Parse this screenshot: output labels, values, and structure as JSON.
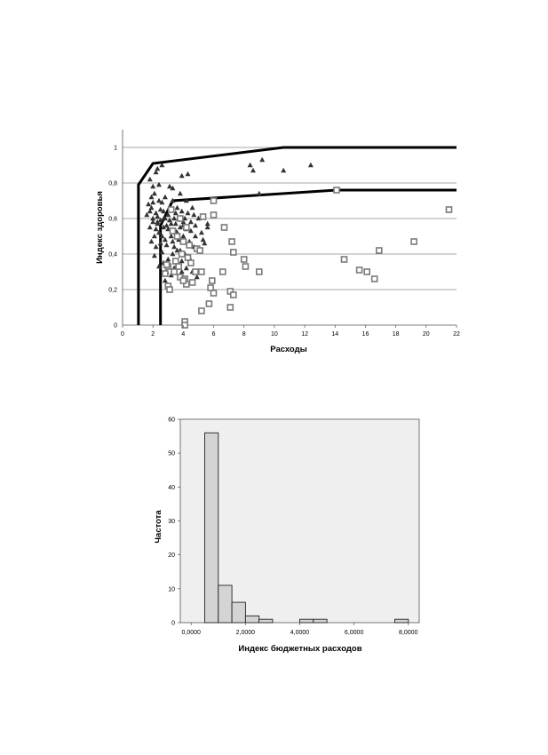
{
  "chart_data": [
    {
      "type": "scatter",
      "xlabel": "Расходы",
      "ylabel": "Индекс здоровья",
      "xlim": [
        0,
        22
      ],
      "ylim": [
        0,
        1.1
      ],
      "x_ticks": [
        "0",
        "2",
        "4",
        "6",
        "8",
        "10",
        "12",
        "14",
        "16",
        "18",
        "20",
        "22"
      ],
      "y_ticks": [
        "0",
        "0,2",
        "0,4",
        "0,6",
        "0,8",
        "1"
      ],
      "grid": "horizontal",
      "series": [
        {
          "marker": "triangle",
          "color": "#333333",
          "points": [
            [
              1.8,
              0.82
            ],
            [
              2.2,
              0.86
            ],
            [
              2.0,
              0.78
            ],
            [
              1.9,
              0.72
            ],
            [
              2.3,
              0.88
            ],
            [
              1.7,
              0.68
            ],
            [
              1.6,
              0.62
            ],
            [
              1.9,
              0.66
            ],
            [
              2.1,
              0.74
            ],
            [
              2.4,
              0.79
            ],
            [
              2.0,
              0.6
            ],
            [
              2.2,
              0.63
            ],
            [
              2.5,
              0.65
            ],
            [
              2.3,
              0.58
            ],
            [
              1.8,
              0.55
            ],
            [
              2.6,
              0.69
            ],
            [
              2.8,
              0.72
            ],
            [
              3.1,
              0.78
            ],
            [
              3.3,
              0.7
            ],
            [
              3.6,
              0.66
            ],
            [
              3.9,
              0.64
            ],
            [
              4.1,
              0.6
            ],
            [
              4.3,
              0.63
            ],
            [
              4.5,
              0.58
            ],
            [
              4.8,
              0.56
            ],
            [
              5.2,
              0.52
            ],
            [
              5.6,
              0.55
            ],
            [
              5.0,
              0.6
            ],
            [
              4.6,
              0.66
            ],
            [
              4.2,
              0.7
            ],
            [
              3.8,
              0.74
            ],
            [
              3.4,
              0.6
            ],
            [
              3.0,
              0.62
            ],
            [
              2.7,
              0.55
            ],
            [
              2.4,
              0.52
            ],
            [
              2.1,
              0.5
            ],
            [
              1.9,
              0.47
            ],
            [
              2.2,
              0.44
            ],
            [
              2.5,
              0.46
            ],
            [
              2.8,
              0.48
            ],
            [
              3.2,
              0.5
            ],
            [
              3.5,
              0.53
            ],
            [
              3.7,
              0.48
            ],
            [
              4.0,
              0.5
            ],
            [
              4.4,
              0.47
            ],
            [
              4.7,
              0.44
            ],
            [
              5.1,
              0.42
            ],
            [
              5.4,
              0.46
            ],
            [
              3.3,
              0.4
            ],
            [
              3.0,
              0.37
            ],
            [
              2.7,
              0.35
            ],
            [
              2.4,
              0.33
            ],
            [
              2.9,
              0.3
            ],
            [
              3.2,
              0.28
            ],
            [
              3.6,
              0.34
            ],
            [
              3.9,
              0.36
            ],
            [
              4.2,
              0.32
            ],
            [
              4.6,
              0.3
            ],
            [
              4.9,
              0.27
            ],
            [
              2.1,
              0.39
            ],
            [
              2.6,
              0.41
            ],
            [
              3.4,
              0.44
            ],
            [
              3.8,
              0.42
            ],
            [
              4.1,
              0.4
            ],
            [
              4.4,
              0.38
            ],
            [
              2.3,
              0.57
            ],
            [
              2.9,
              0.56
            ],
            [
              3.5,
              0.57
            ],
            [
              4.0,
              0.56
            ],
            [
              4.7,
              0.62
            ],
            [
              3.1,
              0.66
            ],
            [
              3.7,
              0.6
            ],
            [
              4.3,
              0.85
            ],
            [
              3.9,
              0.84
            ],
            [
              2.6,
              0.9
            ],
            [
              3.3,
              0.77
            ],
            [
              2.0,
              0.69
            ],
            [
              1.8,
              0.64
            ],
            [
              2.4,
              0.7
            ],
            [
              3.6,
              0.52
            ],
            [
              2.8,
              0.6
            ],
            [
              2.5,
              0.59
            ],
            [
              3.0,
              0.54
            ],
            [
              3.2,
              0.57
            ],
            [
              3.8,
              0.55
            ],
            [
              4.0,
              0.58
            ],
            [
              4.5,
              0.53
            ],
            [
              2.2,
              0.54
            ],
            [
              2.6,
              0.5
            ],
            [
              2.9,
              0.45
            ],
            [
              3.3,
              0.47
            ],
            [
              3.6,
              0.42
            ],
            [
              4.8,
              0.5
            ],
            [
              5.3,
              0.48
            ],
            [
              3.4,
              0.32
            ],
            [
              2.8,
              0.25
            ],
            [
              3.9,
              0.3
            ],
            [
              8.4,
              0.9
            ],
            [
              9.2,
              0.93
            ],
            [
              8.6,
              0.87
            ],
            [
              10.6,
              0.87
            ],
            [
              12.4,
              0.9
            ],
            [
              9.0,
              0.74
            ],
            [
              5.6,
              0.57
            ],
            [
              2.0,
              0.58
            ],
            [
              2.3,
              0.61
            ],
            [
              2.7,
              0.64
            ],
            [
              3.1,
              0.59
            ],
            [
              3.5,
              0.63
            ],
            [
              4.2,
              0.54
            ]
          ]
        },
        {
          "marker": "square",
          "color": "#7a7a7a",
          "points": [
            [
              3.2,
              0.65
            ],
            [
              3.8,
              0.6
            ],
            [
              4.2,
              0.55
            ],
            [
              3.3,
              0.53
            ],
            [
              3.6,
              0.5
            ],
            [
              4.0,
              0.47
            ],
            [
              4.4,
              0.45
            ],
            [
              4.9,
              0.43
            ],
            [
              5.1,
              0.42
            ],
            [
              3.9,
              0.4
            ],
            [
              4.3,
              0.38
            ],
            [
              3.5,
              0.36
            ],
            [
              3.0,
              0.33
            ],
            [
              3.4,
              0.3
            ],
            [
              4.8,
              0.3
            ],
            [
              5.2,
              0.3
            ],
            [
              3.8,
              0.27
            ],
            [
              4.1,
              0.26
            ],
            [
              4.6,
              0.24
            ],
            [
              4.2,
              0.23
            ],
            [
              3.0,
              0.22
            ],
            [
              3.1,
              0.2
            ],
            [
              5.9,
              0.25
            ],
            [
              5.8,
              0.21
            ],
            [
              6.0,
              0.18
            ],
            [
              5.3,
              0.61
            ],
            [
              6.0,
              0.62
            ],
            [
              6.0,
              0.7
            ],
            [
              6.7,
              0.55
            ],
            [
              7.2,
              0.47
            ],
            [
              7.3,
              0.41
            ],
            [
              8.0,
              0.37
            ],
            [
              8.1,
              0.33
            ],
            [
              6.6,
              0.3
            ],
            [
              9.0,
              0.3
            ],
            [
              7.1,
              0.19
            ],
            [
              7.3,
              0.17
            ],
            [
              5.7,
              0.12
            ],
            [
              7.1,
              0.1
            ],
            [
              5.2,
              0.08
            ],
            [
              4.1,
              0.02
            ],
            [
              4.1,
              0.0
            ],
            [
              4.0,
              0.25
            ],
            [
              14.1,
              0.76
            ],
            [
              14.6,
              0.37
            ],
            [
              15.6,
              0.31
            ],
            [
              16.1,
              0.3
            ],
            [
              16.6,
              0.26
            ],
            [
              16.9,
              0.42
            ],
            [
              19.2,
              0.47
            ],
            [
              21.5,
              0.65
            ],
            [
              2.9,
              0.34
            ],
            [
              2.8,
              0.29
            ],
            [
              3.7,
              0.33
            ],
            [
              4.5,
              0.35
            ]
          ]
        }
      ],
      "frontiers": [
        {
          "points": [
            [
              1.05,
              0
            ],
            [
              1.05,
              0.79
            ],
            [
              2.0,
              0.91
            ],
            [
              10.6,
              1.0
            ],
            [
              22,
              1.0
            ]
          ]
        },
        {
          "points": [
            [
              2.5,
              0
            ],
            [
              2.5,
              0.56
            ],
            [
              3.3,
              0.7
            ],
            [
              14.1,
              0.76
            ],
            [
              22,
              0.76
            ]
          ]
        }
      ]
    },
    {
      "type": "bar",
      "subtype": "histogram",
      "xlabel": "Индекс бюджетных расходов",
      "ylabel": "Частота",
      "xlim": [
        -0.4,
        8.4
      ],
      "ylim": [
        0,
        60
      ],
      "x_ticks": [
        {
          "value": 0,
          "label": "0,0000"
        },
        {
          "value": 2,
          "label": "2,0000"
        },
        {
          "value": 4,
          "label": "4,0000"
        },
        {
          "value": 6,
          "label": "6,0000"
        },
        {
          "value": 8,
          "label": "8,0000"
        }
      ],
      "y_ticks": [
        "0",
        "10",
        "20",
        "30",
        "40",
        "50",
        "60"
      ],
      "bins": [
        {
          "start": 0.5,
          "end": 1.0,
          "value": 56
        },
        {
          "start": 1.0,
          "end": 1.5,
          "value": 11
        },
        {
          "start": 1.5,
          "end": 2.0,
          "value": 6
        },
        {
          "start": 2.0,
          "end": 2.5,
          "value": 2
        },
        {
          "start": 2.5,
          "end": 3.0,
          "value": 1
        },
        {
          "start": 4.0,
          "end": 4.5,
          "value": 1
        },
        {
          "start": 4.5,
          "end": 5.0,
          "value": 1
        },
        {
          "start": 7.5,
          "end": 8.0,
          "value": 1
        }
      ],
      "colors": {
        "plot_bg": "#efefef",
        "bar_fill": "#d4d4d4",
        "bar_stroke": "#222222"
      }
    }
  ]
}
